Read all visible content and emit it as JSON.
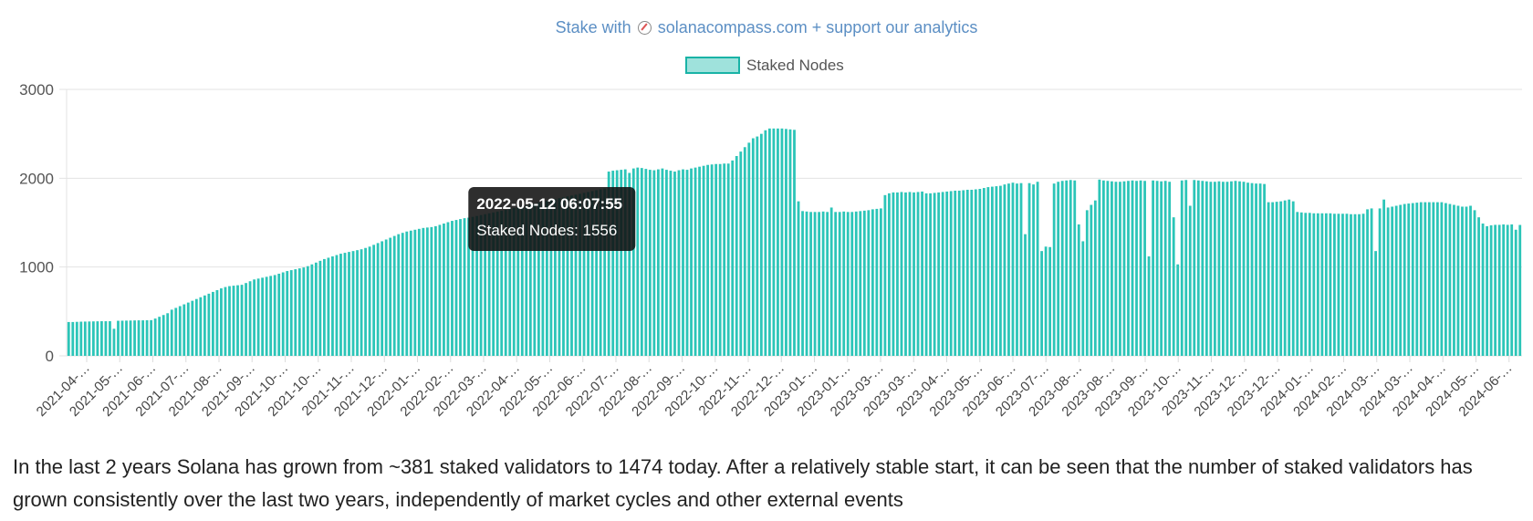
{
  "header": {
    "prefix": "Stake with",
    "compass_icon": "compass-icon",
    "link_text": "solanacompass.com + support our analytics",
    "color": "#5c8fc4"
  },
  "chart_data": {
    "type": "bar",
    "legend": {
      "label": "Staked Nodes",
      "placement": "top-center"
    },
    "colors": {
      "bar": "#2cc5b8",
      "bar_fill_legend": "#9fe2dc",
      "bar_border": "#19b3a6"
    },
    "ylim": [
      0,
      3000
    ],
    "yticks": [
      0,
      1000,
      2000,
      3000
    ],
    "grid": true,
    "x_tick_labels": [
      "2021-04-…",
      "2021-05-…",
      "2021-06-…",
      "2021-07-…",
      "2021-08-…",
      "2021-09-…",
      "2021-10-…",
      "2021-10-…",
      "2021-11-…",
      "2021-12-…",
      "2022-01-…",
      "2022-02-…",
      "2022-03-…",
      "2022-04-…",
      "2022-05-…",
      "2022-06-…",
      "2022-07-…",
      "2022-08-…",
      "2022-09-…",
      "2022-10-…",
      "2022-11-…",
      "2022-12-…",
      "2023-01-…",
      "2023-01-…",
      "2023-03-…",
      "2023-03-…",
      "2023-04-…",
      "2023-05-…",
      "2023-06-…",
      "2023-07-…",
      "2023-08-…",
      "2023-08-…",
      "2023-09-…",
      "2023-10-…",
      "2023-11-…",
      "2023-12-…",
      "2023-12-…",
      "2024-01-…",
      "2024-02-…",
      "2024-03-…",
      "2024-03-…",
      "2024-04-…",
      "2024-05-…",
      "2024-06-…"
    ],
    "series": [
      {
        "name": "Staked Nodes",
        "values": [
          381,
          381,
          383,
          385,
          386,
          387,
          388,
          389,
          390,
          390,
          390,
          305,
          395,
          396,
          397,
          398,
          399,
          400,
          400,
          401,
          402,
          420,
          440,
          460,
          480,
          520,
          540,
          560,
          580,
          600,
          620,
          640,
          660,
          680,
          700,
          720,
          740,
          760,
          775,
          785,
          790,
          795,
          800,
          820,
          840,
          860,
          870,
          880,
          890,
          900,
          910,
          925,
          940,
          955,
          965,
          975,
          985,
          995,
          1010,
          1030,
          1050,
          1070,
          1090,
          1105,
          1120,
          1135,
          1150,
          1160,
          1170,
          1180,
          1190,
          1200,
          1215,
          1230,
          1250,
          1270,
          1290,
          1310,
          1330,
          1350,
          1370,
          1385,
          1400,
          1410,
          1420,
          1430,
          1440,
          1445,
          1450,
          1460,
          1475,
          1490,
          1505,
          1520,
          1530,
          1540,
          1550,
          1556,
          1565,
          1575,
          1585,
          1595,
          1605,
          1615,
          1625,
          1635,
          1645,
          1655,
          1665,
          1675,
          1685,
          1695,
          1705,
          1715,
          1725,
          1735,
          1745,
          1755,
          1765,
          1775,
          1785,
          1795,
          1805,
          1815,
          1825,
          1835,
          1845,
          1855,
          1865,
          1875,
          1885,
          2075,
          2085,
          2090,
          2095,
          2100,
          2060,
          2110,
          2120,
          2115,
          2105,
          2095,
          2090,
          2100,
          2110,
          2095,
          2085,
          2075,
          2090,
          2100,
          2095,
          2110,
          2120,
          2130,
          2140,
          2150,
          2155,
          2160,
          2160,
          2165,
          2165,
          2200,
          2250,
          2300,
          2350,
          2400,
          2450,
          2470,
          2500,
          2540,
          2560,
          2560,
          2560,
          2560,
          2555,
          2550,
          2545,
          1740,
          1630,
          1625,
          1620,
          1620,
          1620,
          1625,
          1620,
          1670,
          1620,
          1620,
          1625,
          1620,
          1620,
          1625,
          1630,
          1635,
          1640,
          1650,
          1655,
          1660,
          1810,
          1830,
          1840,
          1840,
          1845,
          1840,
          1845,
          1840,
          1845,
          1850,
          1830,
          1830,
          1835,
          1840,
          1845,
          1850,
          1855,
          1860,
          1860,
          1865,
          1870,
          1870,
          1875,
          1880,
          1890,
          1900,
          1905,
          1910,
          1915,
          1930,
          1940,
          1950,
          1940,
          1945,
          1370,
          1945,
          1930,
          1960,
          1180,
          1230,
          1225,
          1940,
          1960,
          1970,
          1975,
          1980,
          1975,
          1480,
          1290,
          1640,
          1700,
          1750,
          1985,
          1975,
          1970,
          1965,
          1960,
          1960,
          1965,
          1970,
          1975,
          1970,
          1975,
          1970,
          1120,
          1975,
          1970,
          1965,
          1970,
          1960,
          1560,
          1030,
          1975,
          1980,
          1690,
          1980,
          1975,
          1970,
          1965,
          1960,
          1960,
          1965,
          1960,
          1960,
          1965,
          1970,
          1965,
          1960,
          1950,
          1945,
          1940,
          1940,
          1935,
          1730,
          1730,
          1735,
          1740,
          1750,
          1760,
          1740,
          1620,
          1615,
          1610,
          1610,
          1605,
          1605,
          1605,
          1605,
          1605,
          1600,
          1600,
          1600,
          1600,
          1595,
          1595,
          1595,
          1600,
          1650,
          1660,
          1180,
          1660,
          1760,
          1670,
          1680,
          1690,
          1700,
          1710,
          1715,
          1720,
          1725,
          1730,
          1730,
          1730,
          1730,
          1730,
          1730,
          1720,
          1710,
          1700,
          1690,
          1680,
          1680,
          1690,
          1640,
          1560,
          1490,
          1460,
          1470,
          1475,
          1475,
          1480,
          1475,
          1480,
          1420,
          1474
        ]
      }
    ],
    "tooltip": {
      "title": "2022-05-12 06:07:55",
      "body": "Staked Nodes: 1556",
      "value": 1556
    }
  },
  "caption": "In the last 2 years Solana has grown from ~381 staked validators to 1474 today. After a relatively stable start, it can be seen that the number of staked validators has grown consistently over the last two years, independently of market cycles and other external events"
}
